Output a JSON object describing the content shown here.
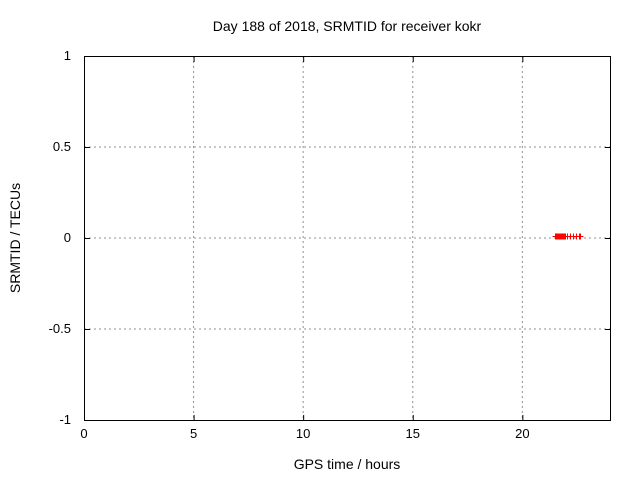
{
  "chart_data": {
    "type": "scatter",
    "title": "Day 188 of 2018, SRMTID for receiver kokr",
    "xlabel": "GPS time / hours",
    "ylabel": "SRMTID / TECUs",
    "xlim": [
      0,
      24
    ],
    "ylim": [
      -1,
      1
    ],
    "xticks": [
      0,
      5,
      10,
      15,
      20
    ],
    "xtick_labels": [
      "0",
      "5",
      "10",
      "15",
      "20"
    ],
    "yticks": [
      -1,
      -0.5,
      0,
      0.5,
      1
    ],
    "ytick_labels": [
      "-1",
      "-0.5",
      "0",
      "0.5",
      "1"
    ],
    "grid": true,
    "legend": "none",
    "colors": {
      "background": "#ffffff",
      "border": "#000000",
      "grid": "#909090",
      "text": "#000000",
      "series1": "#ff0000"
    },
    "series": [
      {
        "name": "SRMTID",
        "marker": "plus",
        "color": "#ff0000",
        "points": [
          [
            21.49,
            0.0
          ],
          [
            21.51,
            0.0
          ],
          [
            21.53,
            0.0
          ],
          [
            21.55,
            0.0
          ],
          [
            21.57,
            0.0
          ],
          [
            21.59,
            0.0
          ],
          [
            21.61,
            0.0
          ],
          [
            21.63,
            0.0
          ],
          [
            21.65,
            0.0
          ],
          [
            21.67,
            0.0
          ],
          [
            21.69,
            0.0
          ],
          [
            21.71,
            0.0
          ],
          [
            21.73,
            0.0
          ],
          [
            21.75,
            0.0
          ],
          [
            21.77,
            0.0
          ],
          [
            21.79,
            0.0
          ],
          [
            21.81,
            0.0
          ],
          [
            21.83,
            0.0
          ],
          [
            21.85,
            0.0
          ],
          [
            21.87,
            0.0
          ],
          [
            21.89,
            0.0
          ],
          [
            21.91,
            0.0
          ],
          [
            21.93,
            0.0
          ],
          [
            21.95,
            0.0
          ],
          [
            22.05,
            0.0
          ],
          [
            22.18,
            0.0
          ],
          [
            22.31,
            0.0
          ],
          [
            22.44,
            0.0
          ],
          [
            22.57,
            0.0
          ],
          [
            22.65,
            0.0
          ]
        ]
      }
    ]
  }
}
